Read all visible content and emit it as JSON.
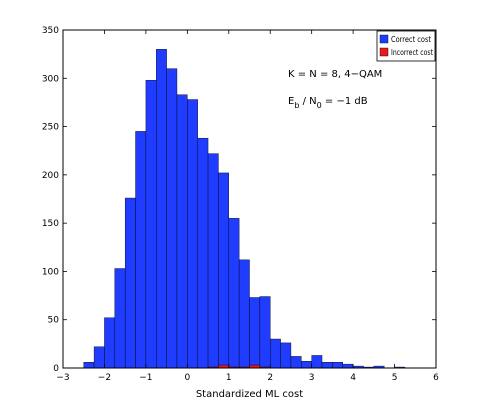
{
  "chart_data": {
    "type": "bar",
    "title": "",
    "xlabel": "Standardized ML cost",
    "ylabel": "",
    "xlim": [
      -3,
      6
    ],
    "ylim": [
      0,
      350
    ],
    "xticks": [
      "-3",
      "-2",
      "-1",
      "0",
      "1",
      "2",
      "3",
      "4",
      "5",
      "6"
    ],
    "yticks": [
      "0",
      "50",
      "100",
      "150",
      "200",
      "250",
      "300",
      "350"
    ],
    "bin_width": 0.25,
    "bin_starts": [
      -2.5,
      -2.25,
      -2.0,
      -1.75,
      -1.5,
      -1.25,
      -1.0,
      -0.75,
      -0.5,
      -0.25,
      0.0,
      0.25,
      0.5,
      0.75,
      1.0,
      1.25,
      1.5,
      1.75,
      2.0,
      2.25,
      2.5,
      2.75,
      3.0,
      3.25,
      3.5,
      3.75,
      4.0,
      4.25,
      4.5,
      4.75,
      5.0
    ],
    "series": [
      {
        "name": "Correct cost",
        "color": "#1f3cff",
        "values": [
          6,
          22,
          52,
          103,
          176,
          245,
          298,
          330,
          310,
          283,
          278,
          238,
          222,
          202,
          155,
          112,
          73,
          74,
          30,
          26,
          12,
          7,
          13,
          6,
          6,
          4,
          2,
          1,
          2,
          0,
          1
        ]
      },
      {
        "name": "Incorrect cost",
        "color": "#e81c1c",
        "values": [
          0,
          0,
          0,
          0,
          0,
          0,
          0,
          0,
          0,
          0,
          0,
          0,
          1,
          3,
          1,
          1,
          3,
          1,
          0,
          0,
          0,
          0,
          0,
          0,
          0,
          0,
          0,
          0,
          0,
          0,
          0
        ]
      }
    ],
    "legend_position": "top-right",
    "annotations": {
      "line1": "K = N = 8,  4−QAM",
      "line2_base": "E",
      "line2_sub": "b",
      "line2_mid": " / N",
      "line2_sub2": "0",
      "line2_tail": "  =  −1  dB"
    },
    "grid": false
  }
}
